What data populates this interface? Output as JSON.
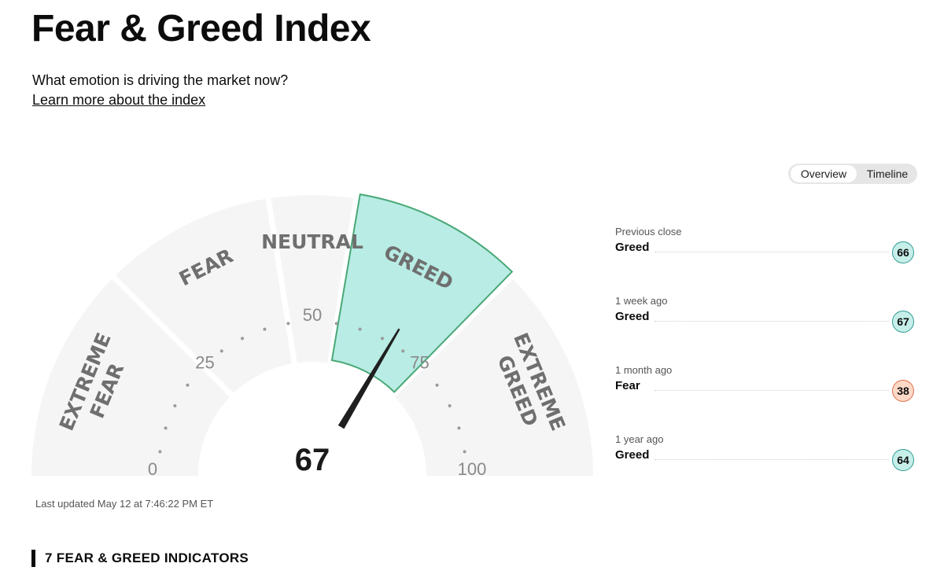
{
  "header": {
    "title": "Fear & Greed Index",
    "subtitle": "What emotion is driving the market now?",
    "learn_more": "Learn more about the index"
  },
  "view_toggle": {
    "options": [
      "Overview",
      "Timeline"
    ],
    "selected": "Overview"
  },
  "gauge": {
    "score": 67,
    "score_text": "67",
    "active_segment": "Greed",
    "segments": [
      {
        "key": "extreme-fear",
        "lines": [
          "EXTREME",
          "FEAR"
        ],
        "range": [
          0,
          25
        ]
      },
      {
        "key": "fear",
        "lines": [
          "FEAR"
        ],
        "range": [
          25,
          45
        ]
      },
      {
        "key": "neutral",
        "lines": [
          "NEUTRAL"
        ],
        "range": [
          45,
          55
        ]
      },
      {
        "key": "greed",
        "lines": [
          "GREED"
        ],
        "range": [
          55,
          75
        ]
      },
      {
        "key": "extreme-greed",
        "lines": [
          "EXTREME",
          "GREED"
        ],
        "range": [
          75,
          100
        ]
      }
    ],
    "ticks": [
      "0",
      "25",
      "50",
      "75",
      "100"
    ],
    "colors": {
      "segment": "#f5f5f5",
      "active_fill": "#b8ece4",
      "active_stroke": "#4aa878",
      "needle": "#1f1f1f",
      "dots": "#9a9a9a"
    }
  },
  "last_updated": "Last updated May 12 at 7:46:22 PM ET",
  "history": [
    {
      "label": "Previous close",
      "rating": "Greed",
      "value": "66",
      "color": "#c7efea",
      "border": "#2f9c92"
    },
    {
      "label": "1 week ago",
      "rating": "Greed",
      "value": "67",
      "color": "#c7efea",
      "border": "#2f9c92"
    },
    {
      "label": "1 month ago",
      "rating": "Fear",
      "value": "38",
      "color": "#fcd8c6",
      "border": "#e0714f"
    },
    {
      "label": "1 year ago",
      "rating": "Greed",
      "value": "64",
      "color": "#c7efea",
      "border": "#2f9c92"
    }
  ],
  "indicators_heading": "7 FEAR & GREED INDICATORS"
}
